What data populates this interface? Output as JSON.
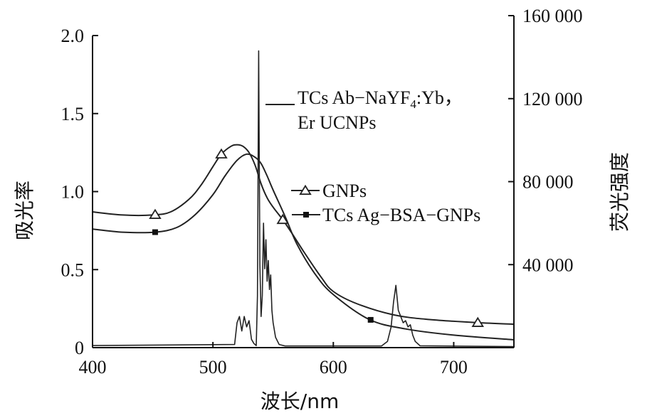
{
  "chart_data": {
    "type": "line",
    "xlabel": "波长/nm",
    "ylabel_left": "吸光率",
    "ylabel_right": "荧光强度",
    "xlim": [
      400,
      750
    ],
    "ylim_left": [
      0,
      2.0
    ],
    "ylim_right": [
      0,
      160000
    ],
    "x_ticks": [
      400,
      500,
      600,
      700
    ],
    "x_tick_labels": [
      "400",
      "500",
      "600",
      "700"
    ],
    "y_left_ticks": [
      0,
      0.5,
      1.0,
      1.5,
      2.0
    ],
    "y_left_tick_labels": [
      "0",
      "0.5",
      "1.0",
      "1.5",
      "2.0"
    ],
    "y_right_ticks": [
      40000,
      80000,
      120000,
      160000
    ],
    "y_right_tick_labels": [
      "40 000",
      "80 000",
      "120 000",
      "160 000"
    ],
    "grid": false,
    "series": [
      {
        "name": "GNPs",
        "axis": "left",
        "marker": "triangle",
        "x": [
          400,
          425,
          450,
          465,
          480,
          490,
          500,
          507,
          515,
          520,
          525,
          530,
          535,
          540,
          545,
          550,
          558,
          565,
          575,
          590,
          600,
          620,
          650,
          680,
          720,
          750
        ],
        "y": [
          0.87,
          0.85,
          0.85,
          0.87,
          0.95,
          1.04,
          1.16,
          1.24,
          1.29,
          1.3,
          1.29,
          1.25,
          1.17,
          1.05,
          0.96,
          0.9,
          0.82,
          0.74,
          0.62,
          0.45,
          0.36,
          0.28,
          0.21,
          0.18,
          0.16,
          0.15
        ],
        "marker_x": [
          452,
          507,
          558,
          720
        ]
      },
      {
        "name": "TCs Ag-BSA-GNPs",
        "axis": "left",
        "marker": "square",
        "x": [
          400,
          425,
          452,
          470,
          485,
          500,
          510,
          520,
          528,
          535,
          540,
          545,
          550,
          560,
          570,
          585,
          600,
          630,
          660,
          700,
          750
        ],
        "y": [
          0.76,
          0.74,
          0.74,
          0.77,
          0.85,
          0.98,
          1.1,
          1.2,
          1.24,
          1.22,
          1.18,
          1.1,
          1.01,
          0.84,
          0.66,
          0.47,
          0.34,
          0.18,
          0.12,
          0.08,
          0.05
        ],
        "marker_x": [
          452,
          631
        ]
      },
      {
        "name": "TCs Ab-NaYF₄:Yb, Er UCNPs",
        "axis": "right",
        "marker": "none",
        "x": [
          400,
          518,
          520,
          522,
          524,
          526,
          528,
          530,
          532,
          534,
          536,
          537,
          538,
          539,
          540,
          541,
          542,
          543,
          544,
          545,
          546,
          547,
          548,
          549,
          550,
          552,
          555,
          560,
          640,
          645,
          648,
          650,
          652,
          654,
          656,
          658,
          660,
          662,
          664,
          666,
          668,
          672,
          750
        ],
        "y": [
          1000,
          1500,
          12000,
          15000,
          8000,
          15000,
          10000,
          13000,
          4000,
          2000,
          1000,
          25000,
          143000,
          40000,
          15000,
          25000,
          60000,
          38000,
          52000,
          32000,
          42000,
          28000,
          35000,
          18000,
          12000,
          5000,
          1500,
          800,
          800,
          3000,
          10000,
          22000,
          30000,
          18000,
          15000,
          12000,
          13000,
          10000,
          11000,
          6000,
          3000,
          900,
          500
        ]
      }
    ],
    "legend": [
      {
        "label_main": "TCs Ab−NaYF",
        "label_sub": "4",
        "label_tail": ":Yb，",
        "label_line2": "Er UCNPs",
        "style": "line"
      },
      {
        "label": "GNPs",
        "style": "triangle"
      },
      {
        "label": "TCs Ag−BSA−GNPs",
        "style": "square"
      }
    ],
    "legend_position": "inside-right"
  }
}
